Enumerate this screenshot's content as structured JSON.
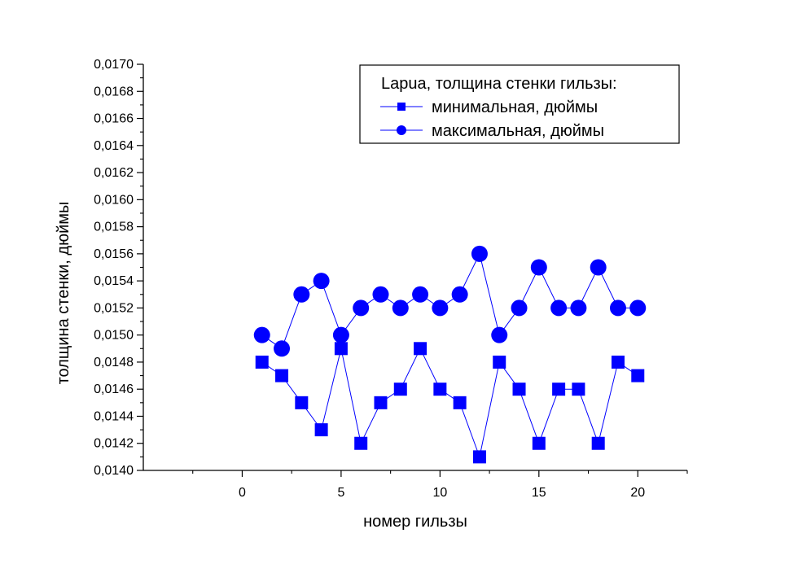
{
  "chart_data": {
    "type": "scatter",
    "xlabel": "номер гильзы",
    "ylabel": "толщина стенки, дюймы",
    "xlim": [
      -5,
      22.5
    ],
    "ylim": [
      0.014,
      0.017
    ],
    "x_ticks": [
      0,
      5,
      10,
      15,
      20
    ],
    "y_ticks": [
      0.014,
      0.0142,
      0.0144,
      0.0146,
      0.0148,
      0.015,
      0.0152,
      0.0154,
      0.0156,
      0.0158,
      0.016,
      0.0162,
      0.0164,
      0.0166,
      0.0168,
      0.017
    ],
    "y_tick_labels": [
      "0,0140",
      "0,0142",
      "0,0144",
      "0,0146",
      "0,0148",
      "0,0150",
      "0,0152",
      "0,0154",
      "0,0156",
      "0,0158",
      "0,0160",
      "0,0162",
      "0,0164",
      "0,0166",
      "0,0168",
      "0,0170"
    ],
    "x": [
      1,
      2,
      3,
      4,
      5,
      6,
      7,
      8,
      9,
      10,
      11,
      12,
      13,
      14,
      15,
      16,
      17,
      18,
      19,
      20
    ],
    "series": [
      {
        "name": "минимальная, дюймы",
        "marker": "square",
        "color": "#0000FF",
        "values": [
          0.0148,
          0.0147,
          0.0145,
          0.0143,
          0.0149,
          0.0142,
          0.0145,
          0.0146,
          0.0149,
          0.0146,
          0.0145,
          0.0141,
          0.0148,
          0.0146,
          0.0142,
          0.0146,
          0.0146,
          0.0142,
          0.0148,
          0.0147
        ]
      },
      {
        "name": "максимальная, дюймы",
        "marker": "circle",
        "color": "#0000FF",
        "values": [
          0.015,
          0.0149,
          0.0153,
          0.0154,
          0.015,
          0.0152,
          0.0153,
          0.0152,
          0.0153,
          0.0152,
          0.0153,
          0.0156,
          0.015,
          0.0152,
          0.0155,
          0.0152,
          0.0152,
          0.0155,
          0.0152,
          0.0152
        ]
      }
    ],
    "legend": {
      "title": "Lapua, толщина стенки гильзы:",
      "placement": "top-right"
    },
    "grid": false
  }
}
